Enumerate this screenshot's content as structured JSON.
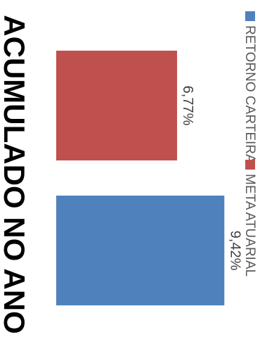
{
  "chart_data": {
    "type": "bar",
    "title": "ACUMULADO NO ANO",
    "xlabel": "",
    "ylabel": "",
    "categories": [
      "RETORNO CARTEIRA",
      "META ATUARIAL"
    ],
    "values": [
      9.42,
      6.77
    ],
    "value_labels": [
      "9,42%",
      "6,77%"
    ],
    "colors": [
      "#4f81bd",
      "#c0504d"
    ],
    "ylim": [
      0,
      10
    ],
    "grid": false,
    "legend_position": "bottom",
    "orientation": "rotated 90 degrees clockwise"
  }
}
